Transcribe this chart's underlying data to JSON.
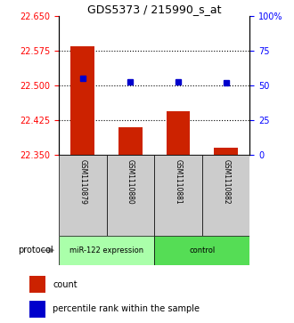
{
  "title": "GDS5373 / 215990_s_at",
  "samples": [
    "GSM1110879",
    "GSM1110880",
    "GSM1110881",
    "GSM1110882"
  ],
  "bar_values": [
    22.585,
    22.41,
    22.445,
    22.365
  ],
  "blue_values": [
    55,
    53,
    53,
    52
  ],
  "ylim": [
    22.35,
    22.65
  ],
  "yticks": [
    22.35,
    22.425,
    22.5,
    22.575,
    22.65
  ],
  "y2lim": [
    0,
    100
  ],
  "y2ticks": [
    0,
    25,
    50,
    75,
    100
  ],
  "y2ticklabels": [
    "0",
    "25",
    "50",
    "75",
    "100%"
  ],
  "bar_color": "#cc2200",
  "dot_color": "#0000cc",
  "groups": [
    {
      "label": "miR-122 expression",
      "color": "#aaffaa",
      "indices": [
        0,
        1
      ]
    },
    {
      "label": "control",
      "color": "#55dd55",
      "indices": [
        2,
        3
      ]
    }
  ],
  "protocol_label": "protocol",
  "legend_count_label": "count",
  "legend_pct_label": "percentile rank within the sample",
  "sample_box_color": "#cccccc",
  "bar_bottom": 22.35,
  "dot_marker_size": 4
}
